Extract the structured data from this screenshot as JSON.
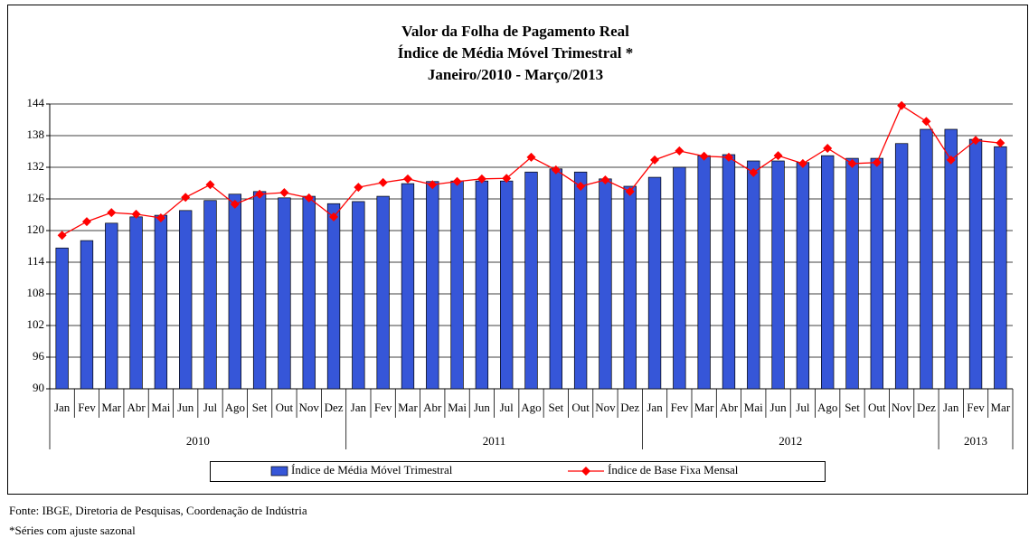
{
  "chart_data": {
    "type": "bar",
    "title": [
      "Valor da Folha de Pagamento Real",
      "Índice de Média Móvel Trimestral *",
      "Janeiro/2010 - Março/2013"
    ],
    "categories": [
      "Jan",
      "Fev",
      "Mar",
      "Abr",
      "Mai",
      "Jun",
      "Jul",
      "Ago",
      "Set",
      "Out",
      "Nov",
      "Dez",
      "Jan",
      "Fev",
      "Mar",
      "Abr",
      "Mai",
      "Jun",
      "Jul",
      "Ago",
      "Set",
      "Out",
      "Nov",
      "Dez",
      "Jan",
      "Fev",
      "Mar",
      "Abr",
      "Mai",
      "Jun",
      "Jul",
      "Ago",
      "Set",
      "Out",
      "Nov",
      "Dez",
      "Jan",
      "Fev",
      "Mar"
    ],
    "category_groups": [
      "2010",
      "2010",
      "2010",
      "2010",
      "2010",
      "2010",
      "2010",
      "2010",
      "2010",
      "2010",
      "2010",
      "2010",
      "2011",
      "2011",
      "2011",
      "2011",
      "2011",
      "2011",
      "2011",
      "2011",
      "2011",
      "2011",
      "2011",
      "2011",
      "2012",
      "2012",
      "2012",
      "2012",
      "2012",
      "2012",
      "2012",
      "2012",
      "2012",
      "2012",
      "2012",
      "2012",
      "2013",
      "2013",
      "2013"
    ],
    "series": [
      {
        "name": "Índice de Média Móvel Trimestral",
        "type": "bar",
        "color": "#3656d8",
        "values": [
          116.7,
          118.1,
          121.4,
          122.6,
          122.9,
          123.8,
          125.7,
          126.9,
          127.4,
          126.2,
          126.5,
          125.1,
          125.5,
          126.5,
          128.9,
          129.3,
          129.4,
          129.4,
          129.4,
          131.1,
          131.7,
          131.1,
          129.8,
          128.4,
          130.1,
          132.0,
          134.2,
          134.4,
          133.2,
          133.2,
          132.9,
          134.2,
          133.7,
          133.7,
          136.5,
          139.2,
          139.2,
          137.3,
          135.9
        ]
      },
      {
        "name": "Índice de Base Fixa Mensal",
        "type": "line",
        "color": "#ff0000",
        "values": [
          119.1,
          121.7,
          123.4,
          123.1,
          122.4,
          126.3,
          128.7,
          125.0,
          126.9,
          127.2,
          126.2,
          122.6,
          128.2,
          129.1,
          129.8,
          128.7,
          129.3,
          129.8,
          129.9,
          133.9,
          131.5,
          128.4,
          129.6,
          127.4,
          133.4,
          135.1,
          134.1,
          133.9,
          131.0,
          134.2,
          132.7,
          135.6,
          132.7,
          132.9,
          143.7,
          140.7,
          133.4,
          137.1,
          136.6
        ]
      }
    ],
    "ylim": [
      90,
      144
    ],
    "yticks": [
      90,
      96,
      102,
      108,
      114,
      120,
      126,
      132,
      138,
      144
    ],
    "grid": true
  },
  "source": "Fonte: IBGE, Diretoria de Pesquisas, Coordenação de Indústria",
  "footnote": "*Séries com ajuste sazonal"
}
